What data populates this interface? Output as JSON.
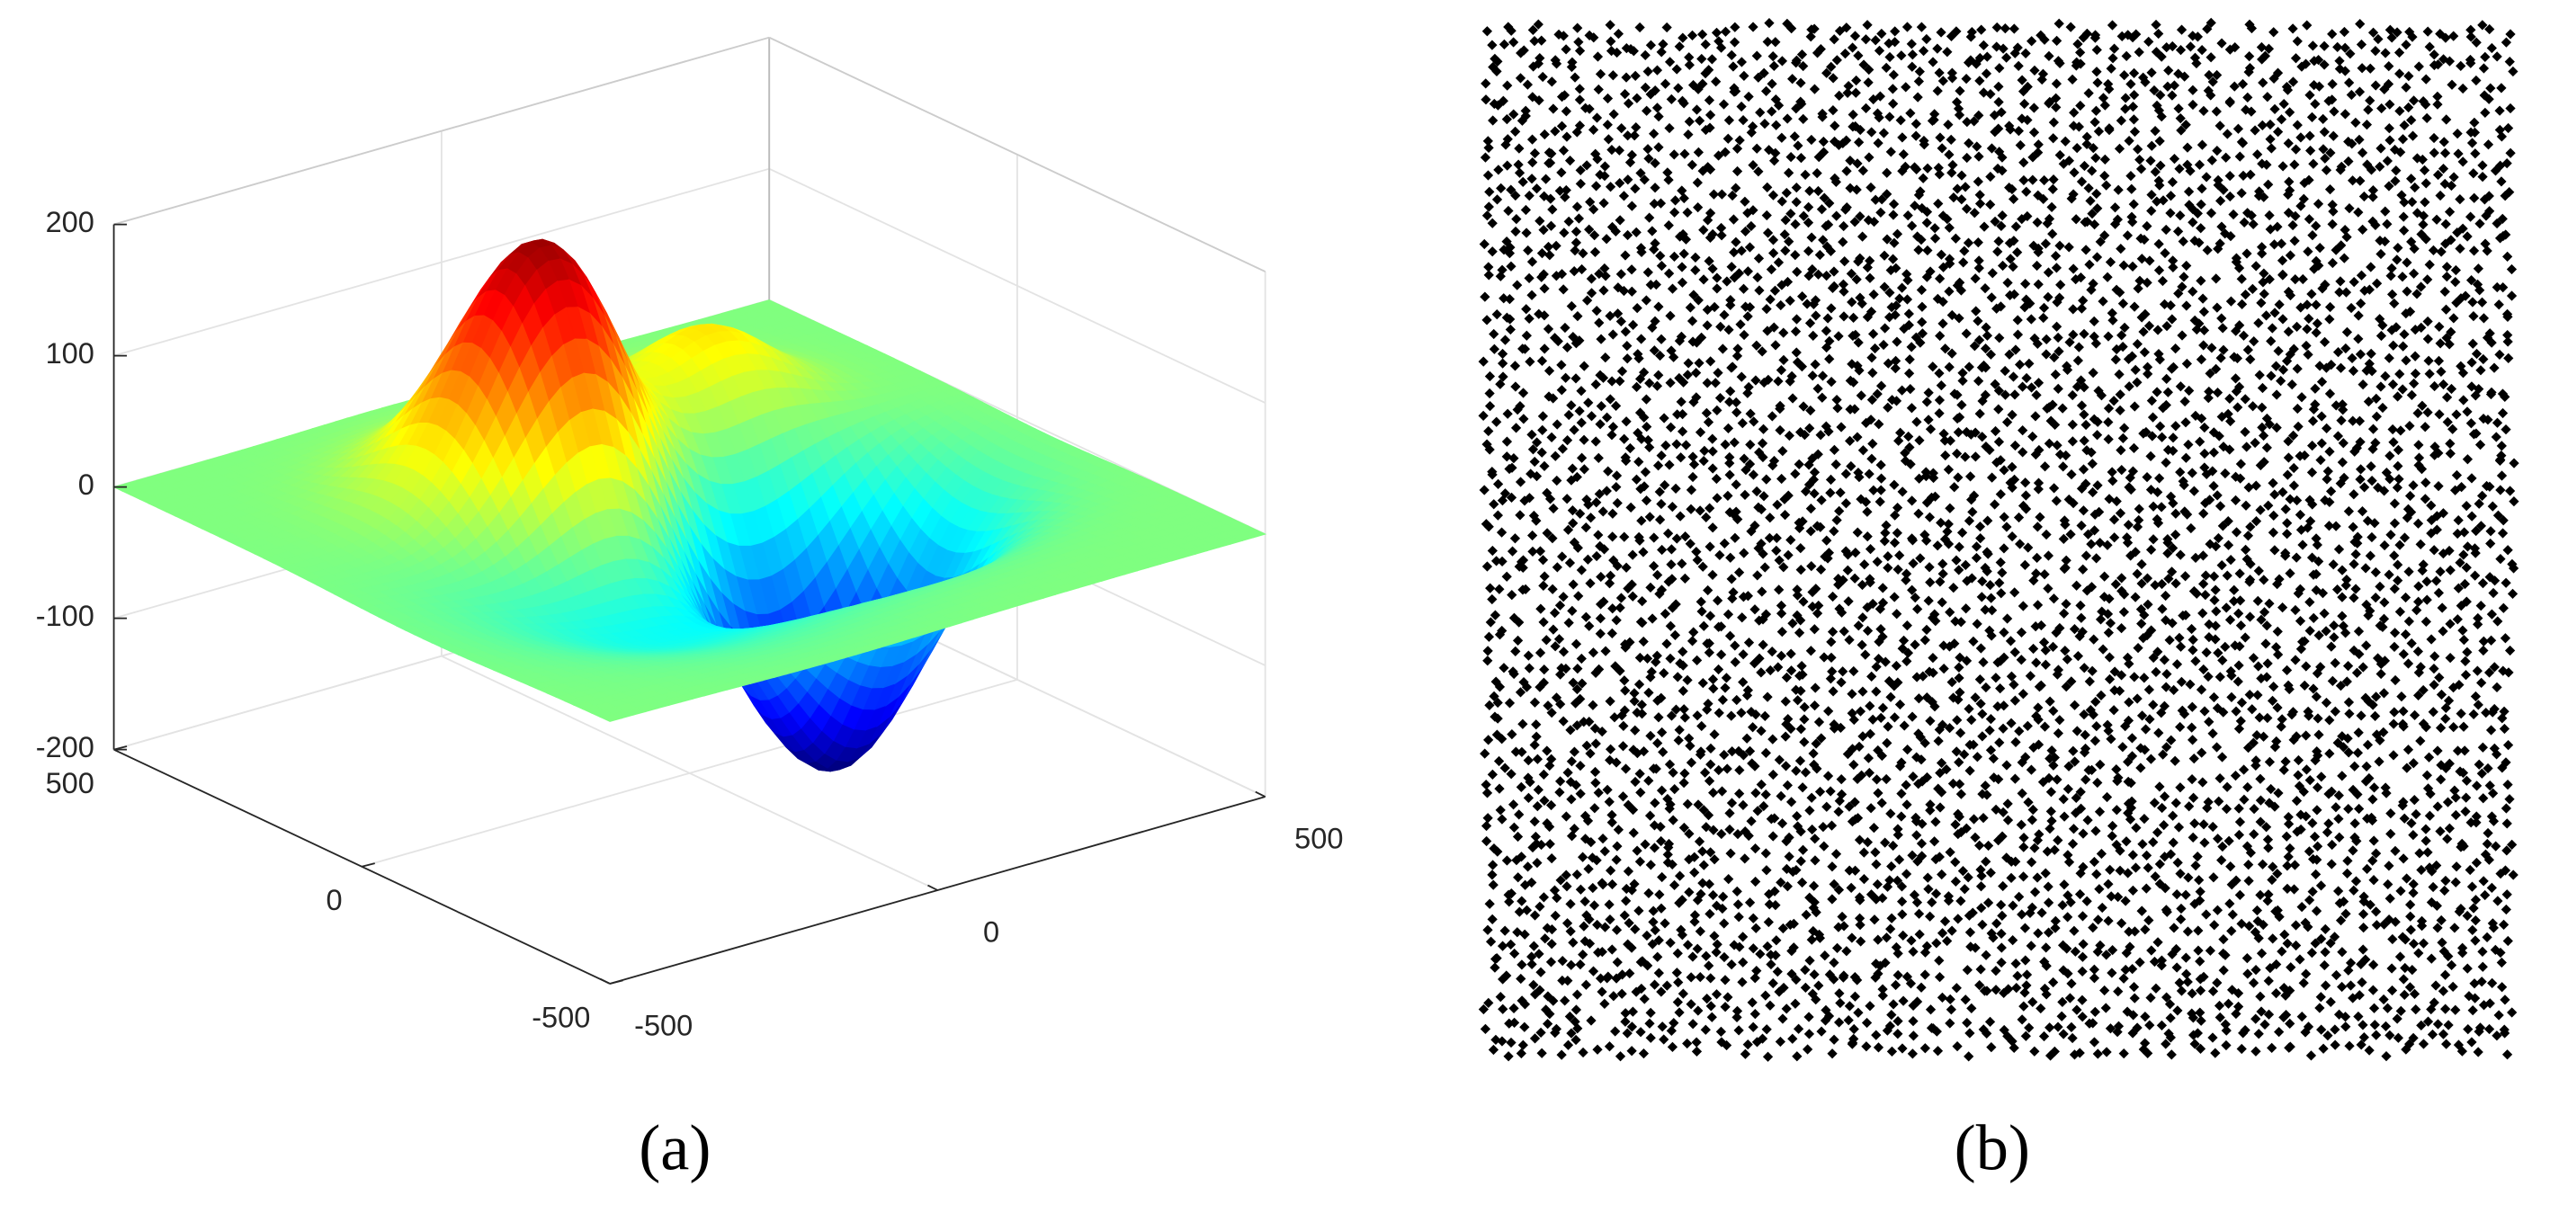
{
  "chart_data": [
    {
      "type": "surface3d",
      "xlim": [
        -500,
        500
      ],
      "xticks": [
        -500,
        0,
        500
      ],
      "ylim": [
        -500,
        500
      ],
      "yticks": [
        -500,
        0,
        500
      ],
      "zlim": [
        -200,
        200
      ],
      "zticks": [
        -200,
        -100,
        0,
        100,
        200
      ],
      "grid": true,
      "caption": "(a)"
    },
    {
      "type": "scatter",
      "color": "#000000",
      "caption": "(b)"
    }
  ]
}
